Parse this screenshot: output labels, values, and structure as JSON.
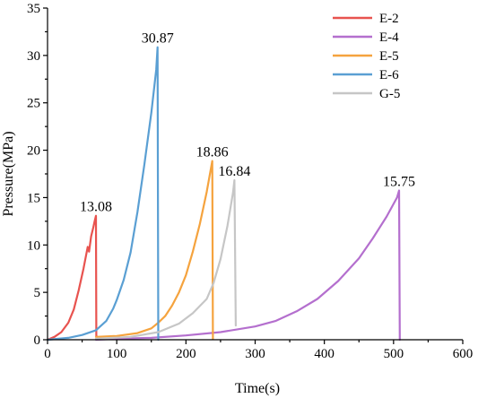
{
  "chart_data": {
    "type": "line",
    "title": "",
    "xlabel": "Time(s)",
    "ylabel": "Pressure(MPa)",
    "xlim": [
      0,
      600
    ],
    "ylim": [
      0,
      35
    ],
    "xticks": [
      0,
      100,
      200,
      300,
      400,
      500,
      600
    ],
    "yticks": [
      0,
      5,
      10,
      15,
      20,
      25,
      30,
      35
    ],
    "grid": false,
    "legend_position": "top-right",
    "series": [
      {
        "name": "E-2",
        "color": "#e8534f",
        "peak_label": "13.08",
        "points": [
          [
            0,
            0
          ],
          [
            10,
            0.3
          ],
          [
            20,
            0.8
          ],
          [
            30,
            1.8
          ],
          [
            38,
            3.2
          ],
          [
            45,
            5.2
          ],
          [
            52,
            7.5
          ],
          [
            58,
            9.8
          ],
          [
            60,
            9.3
          ],
          [
            63,
            10.9
          ],
          [
            66,
            11.8
          ],
          [
            68,
            12.5
          ],
          [
            70,
            13.08
          ],
          [
            70.5,
            0.4
          ],
          [
            72,
            0.3
          ]
        ]
      },
      {
        "name": "E-4",
        "color": "#b46fce",
        "peak_label": "15.75",
        "points": [
          [
            70,
            0
          ],
          [
            100,
            0.1
          ],
          [
            150,
            0.2
          ],
          [
            200,
            0.45
          ],
          [
            250,
            0.8
          ],
          [
            300,
            1.4
          ],
          [
            330,
            2.0
          ],
          [
            360,
            3.0
          ],
          [
            390,
            4.3
          ],
          [
            420,
            6.2
          ],
          [
            450,
            8.6
          ],
          [
            470,
            10.7
          ],
          [
            490,
            13.0
          ],
          [
            505,
            15.0
          ],
          [
            508,
            15.75
          ],
          [
            509,
            0
          ]
        ]
      },
      {
        "name": "E-5",
        "color": "#f5a33e",
        "peak_label": "18.86",
        "points": [
          [
            70,
            0.3
          ],
          [
            100,
            0.4
          ],
          [
            130,
            0.7
          ],
          [
            150,
            1.2
          ],
          [
            160,
            1.8
          ],
          [
            170,
            2.5
          ],
          [
            180,
            3.6
          ],
          [
            190,
            5.0
          ],
          [
            200,
            6.8
          ],
          [
            210,
            9.3
          ],
          [
            220,
            12.2
          ],
          [
            230,
            15.6
          ],
          [
            238,
            18.86
          ],
          [
            239,
            0.1
          ]
        ]
      },
      {
        "name": "E-6",
        "color": "#5a9fd3",
        "peak_label": "30.87",
        "points": [
          [
            0,
            0
          ],
          [
            30,
            0.2
          ],
          [
            50,
            0.5
          ],
          [
            70,
            1.0
          ],
          [
            85,
            2.0
          ],
          [
            95,
            3.3
          ],
          [
            100,
            4.2
          ],
          [
            110,
            6.3
          ],
          [
            120,
            9.2
          ],
          [
            130,
            13.5
          ],
          [
            140,
            18.5
          ],
          [
            150,
            24.0
          ],
          [
            157,
            28.5
          ],
          [
            159,
            30.87
          ],
          [
            160,
            0
          ]
        ]
      },
      {
        "name": "G-5",
        "color": "#c6c6c6",
        "peak_label": "16.84",
        "points": [
          [
            70,
            0.1
          ],
          [
            120,
            0.3
          ],
          [
            160,
            0.8
          ],
          [
            190,
            1.7
          ],
          [
            210,
            2.8
          ],
          [
            230,
            4.3
          ],
          [
            240,
            6.0
          ],
          [
            250,
            8.5
          ],
          [
            260,
            12.0
          ],
          [
            268,
            15.5
          ],
          [
            270,
            16.84
          ],
          [
            272,
            1.5
          ]
        ]
      }
    ]
  }
}
